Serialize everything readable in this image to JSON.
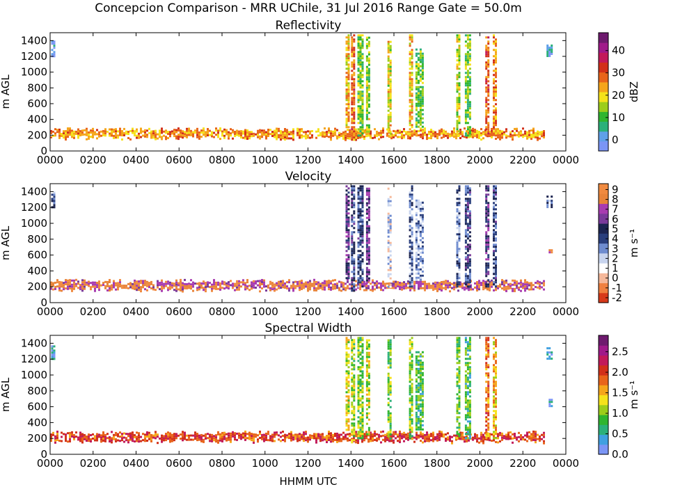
{
  "figure": {
    "title": "Concepcion Comparison - MRR UChile, 31 Jul 2016 Range Gate = 50.0m",
    "xlabel": "HHMM UTC"
  },
  "chart_data": [
    {
      "type": "heatmap",
      "title": "Reflectivity",
      "ylabel": "m AGL",
      "xlim": [
        0,
        24
      ],
      "ylim": [
        0,
        1500
      ],
      "xticks": [
        "0000",
        "0200",
        "0400",
        "0600",
        "0800",
        "1000",
        "1200",
        "1400",
        "1600",
        "1800",
        "2000",
        "2200",
        "0000"
      ],
      "yticks": [
        "0",
        "200",
        "400",
        "600",
        "800",
        "1000",
        "1200",
        "1400"
      ],
      "colorbar": {
        "label": "dBZ",
        "ticks": [
          "0",
          "10",
          "20",
          "30",
          "40"
        ],
        "range": [
          -5,
          48
        ]
      },
      "bands": [
        {
          "x": [
            0.0,
            23.0
          ],
          "y": [
            150,
            300
          ],
          "value": 25
        },
        {
          "x": [
            13.75,
            13.85
          ],
          "y": [
            300,
            1480
          ],
          "value": 22
        },
        {
          "x": [
            14.0,
            14.15
          ],
          "y": [
            150,
            1480
          ],
          "value": 28
        },
        {
          "x": [
            14.3,
            14.5
          ],
          "y": [
            200,
            1480
          ],
          "value": 14
        },
        {
          "x": [
            14.7,
            14.85
          ],
          "y": [
            250,
            1450
          ],
          "value": 15
        },
        {
          "x": [
            15.7,
            15.85
          ],
          "y": [
            200,
            1450
          ],
          "value": 19
        },
        {
          "x": [
            16.7,
            16.85
          ],
          "y": [
            200,
            1480
          ],
          "value": 21
        },
        {
          "x": [
            17.0,
            17.3
          ],
          "y": [
            300,
            1300
          ],
          "value": 12
        },
        {
          "x": [
            18.9,
            19.05
          ],
          "y": [
            200,
            1480
          ],
          "value": 18
        },
        {
          "x": [
            19.3,
            19.55
          ],
          "y": [
            200,
            1480
          ],
          "value": 12
        },
        {
          "x": [
            20.25,
            20.4
          ],
          "y": [
            200,
            1480
          ],
          "value": 29
        },
        {
          "x": [
            20.6,
            20.75
          ],
          "y": [
            200,
            1480
          ],
          "value": 26
        },
        {
          "x": [
            0.05,
            0.2
          ],
          "y": [
            1200,
            1400
          ],
          "value": -2
        },
        {
          "x": [
            23.1,
            23.3
          ],
          "y": [
            1200,
            1350
          ],
          "value": 1
        }
      ]
    },
    {
      "type": "heatmap",
      "title": "Velocity",
      "ylabel": "m AGL",
      "xlim": [
        0,
        24
      ],
      "ylim": [
        0,
        1500
      ],
      "xticks": [
        "0000",
        "0200",
        "0400",
        "0600",
        "0800",
        "1000",
        "1200",
        "1400",
        "1600",
        "1800",
        "2000",
        "2200",
        "0000"
      ],
      "yticks": [
        "0",
        "200",
        "400",
        "600",
        "800",
        "1000",
        "1200",
        "1400"
      ],
      "colorbar": {
        "label": "m s⁻¹",
        "ticks": [
          "-2",
          "-1",
          "0",
          "1",
          "2",
          "3",
          "4",
          "5",
          "6",
          "7",
          "8",
          "9"
        ],
        "range": [
          -2.5,
          9.6
        ]
      },
      "bands": [
        {
          "x": [
            0.0,
            23.0
          ],
          "y": [
            150,
            300
          ],
          "value": 8
        },
        {
          "x": [
            13.75,
            13.9
          ],
          "y": [
            300,
            1480
          ],
          "value": 5.5
        },
        {
          "x": [
            14.0,
            14.15
          ],
          "y": [
            150,
            1480
          ],
          "value": 4.5
        },
        {
          "x": [
            14.3,
            14.5
          ],
          "y": [
            200,
            1480
          ],
          "value": 4
        },
        {
          "x": [
            14.7,
            14.85
          ],
          "y": [
            250,
            1450
          ],
          "value": 6
        },
        {
          "x": [
            15.7,
            15.85
          ],
          "y": [
            200,
            1450
          ],
          "value": 1.5
        },
        {
          "x": [
            16.7,
            16.85
          ],
          "y": [
            200,
            1480
          ],
          "value": 3.5
        },
        {
          "x": [
            17.0,
            17.3
          ],
          "y": [
            300,
            1300
          ],
          "value": 2.5
        },
        {
          "x": [
            18.9,
            19.05
          ],
          "y": [
            200,
            1480
          ],
          "value": 3.5
        },
        {
          "x": [
            19.3,
            19.55
          ],
          "y": [
            200,
            1480
          ],
          "value": 4.5
        },
        {
          "x": [
            20.25,
            20.4
          ],
          "y": [
            200,
            1480
          ],
          "value": 5.5
        },
        {
          "x": [
            20.6,
            20.75
          ],
          "y": [
            200,
            1480
          ],
          "value": 4
        },
        {
          "x": [
            0.05,
            0.2
          ],
          "y": [
            1200,
            1400
          ],
          "value": 4
        },
        {
          "x": [
            23.1,
            23.3
          ],
          "y": [
            1200,
            1350
          ],
          "value": 4
        },
        {
          "x": [
            23.2,
            23.35
          ],
          "y": [
            600,
            700
          ],
          "value": 8
        }
      ]
    },
    {
      "type": "heatmap",
      "title": "Spectral Width",
      "ylabel": "m AGL",
      "xlim": [
        0,
        24
      ],
      "ylim": [
        0,
        1500
      ],
      "xticks": [
        "0000",
        "0200",
        "0400",
        "0600",
        "0800",
        "1000",
        "1200",
        "1400",
        "1600",
        "1800",
        "2000",
        "2200",
        "0000"
      ],
      "yticks": [
        "0",
        "200",
        "400",
        "600",
        "800",
        "1000",
        "1200",
        "1400"
      ],
      "colorbar": {
        "label": "m s⁻¹",
        "ticks": [
          "0.0",
          "0.5",
          "1.0",
          "1.5",
          "2.0",
          "2.5"
        ],
        "range": [
          0,
          2.9
        ]
      },
      "bands": [
        {
          "x": [
            0.0,
            23.0
          ],
          "y": [
            150,
            300
          ],
          "value": 2.0
        },
        {
          "x": [
            13.75,
            13.9
          ],
          "y": [
            300,
            1480
          ],
          "value": 1.3
        },
        {
          "x": [
            14.0,
            14.15
          ],
          "y": [
            150,
            1480
          ],
          "value": 1.1
        },
        {
          "x": [
            14.3,
            14.5
          ],
          "y": [
            200,
            1480
          ],
          "value": 1.0
        },
        {
          "x": [
            14.7,
            14.85
          ],
          "y": [
            250,
            1450
          ],
          "value": 1.2
        },
        {
          "x": [
            15.7,
            15.85
          ],
          "y": [
            200,
            1450
          ],
          "value": 0.9
        },
        {
          "x": [
            16.7,
            16.85
          ],
          "y": [
            200,
            1480
          ],
          "value": 1.0
        },
        {
          "x": [
            17.0,
            17.3
          ],
          "y": [
            300,
            1300
          ],
          "value": 0.8
        },
        {
          "x": [
            18.9,
            19.05
          ],
          "y": [
            200,
            1480
          ],
          "value": 0.9
        },
        {
          "x": [
            19.3,
            19.55
          ],
          "y": [
            200,
            1480
          ],
          "value": 0.8
        },
        {
          "x": [
            20.25,
            20.4
          ],
          "y": [
            200,
            1480
          ],
          "value": 1.8
        },
        {
          "x": [
            20.6,
            20.75
          ],
          "y": [
            200,
            1480
          ],
          "value": 1.5
        },
        {
          "x": [
            0.05,
            0.2
          ],
          "y": [
            1200,
            1400
          ],
          "value": 0.3
        },
        {
          "x": [
            23.1,
            23.3
          ],
          "y": [
            1200,
            1350
          ],
          "value": 0.5
        },
        {
          "x": [
            23.2,
            23.35
          ],
          "y": [
            600,
            700
          ],
          "value": 0.3
        }
      ]
    }
  ]
}
